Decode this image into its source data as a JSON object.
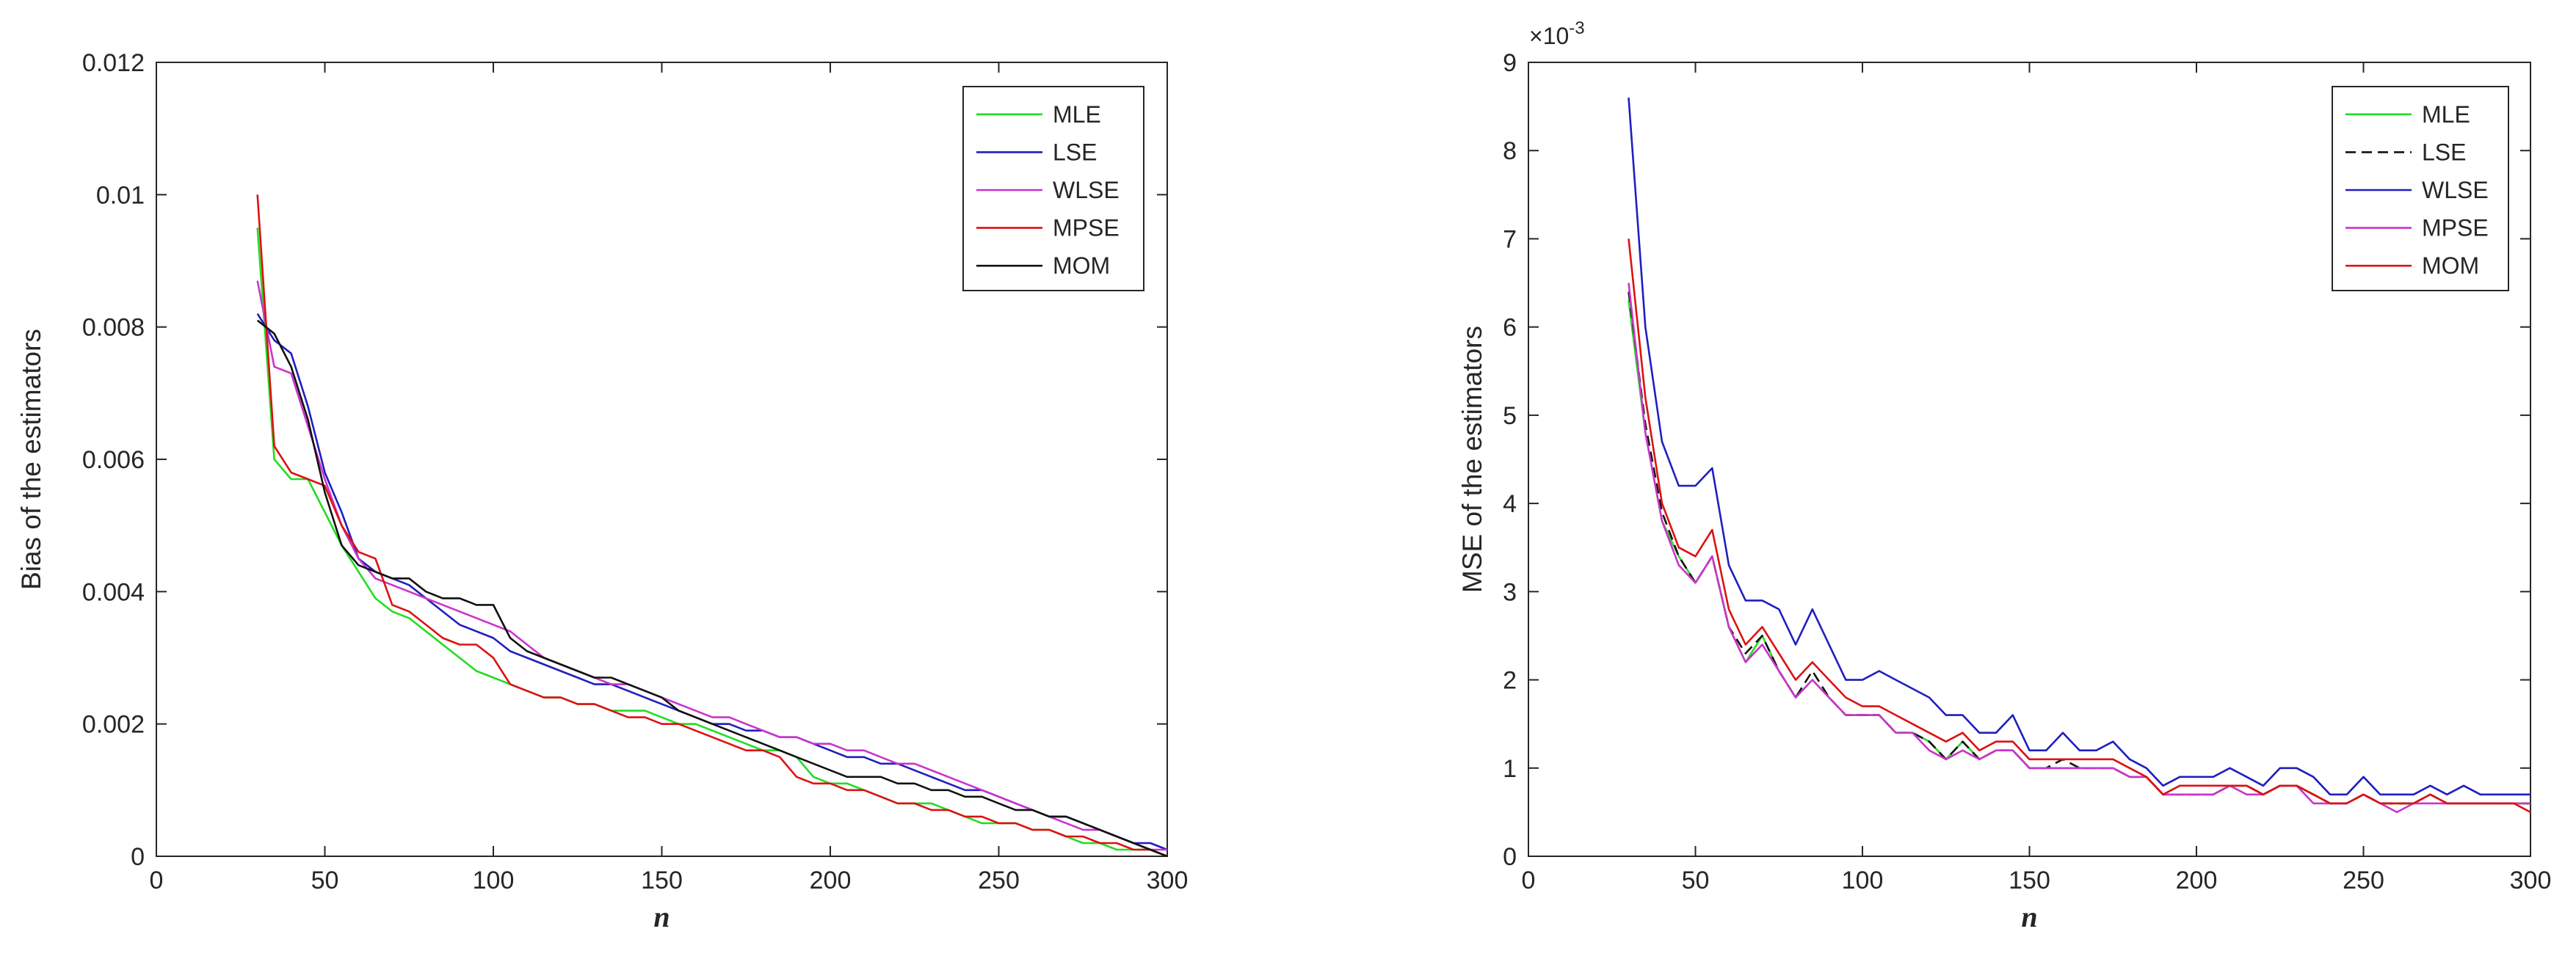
{
  "chart_data": [
    {
      "type": "line",
      "title": "",
      "xlabel": "n",
      "ylabel": "Bias of the estimators",
      "xlim": [
        0,
        300
      ],
      "ylim": [
        0,
        0.012
      ],
      "xticks": [
        0,
        50,
        100,
        150,
        200,
        250,
        300
      ],
      "xtick_labels": [
        "0",
        "50",
        "100",
        "150",
        "200",
        "250",
        "300"
      ],
      "yticks": [
        0,
        0.002,
        0.004,
        0.006,
        0.008,
        0.01,
        0.012
      ],
      "ytick_labels": [
        "0",
        "0.002",
        "0.004",
        "0.006",
        "0.008",
        "0.01",
        "0.012"
      ],
      "exponent_label": "",
      "grid": false,
      "legend_position": "top-right",
      "x": [
        30,
        35,
        40,
        45,
        50,
        55,
        60,
        65,
        70,
        75,
        80,
        85,
        90,
        95,
        100,
        105,
        110,
        115,
        120,
        125,
        130,
        135,
        140,
        145,
        150,
        155,
        160,
        165,
        170,
        175,
        180,
        185,
        190,
        195,
        200,
        205,
        210,
        215,
        220,
        225,
        230,
        235,
        240,
        245,
        250,
        255,
        260,
        265,
        270,
        275,
        280,
        285,
        290,
        295,
        300
      ],
      "series": [
        {
          "name": "MLE",
          "color": "#22dd22",
          "dash": "",
          "values": [
            0.0095,
            0.006,
            0.0057,
            0.0057,
            0.0052,
            0.0047,
            0.0043,
            0.0039,
            0.0037,
            0.0036,
            0.0034,
            0.0032,
            0.003,
            0.0028,
            0.0027,
            0.0026,
            0.0025,
            0.0024,
            0.0024,
            0.0023,
            0.0023,
            0.0022,
            0.0022,
            0.0022,
            0.0021,
            0.002,
            0.002,
            0.0019,
            0.0018,
            0.0017,
            0.0016,
            0.0016,
            0.0015,
            0.0012,
            0.0011,
            0.0011,
            0.001,
            0.0009,
            0.0008,
            0.0008,
            0.0008,
            0.0007,
            0.0006,
            0.0005,
            0.0005,
            0.0005,
            0.0004,
            0.0004,
            0.0003,
            0.0002,
            0.0002,
            0.0001,
            0.0001,
            0.0001,
            0.0
          ]
        },
        {
          "name": "LSE",
          "color": "#1f1fbf",
          "dash": "",
          "values": [
            0.0082,
            0.0078,
            0.0076,
            0.0068,
            0.0058,
            0.0052,
            0.0045,
            0.0043,
            0.0042,
            0.0041,
            0.0039,
            0.0037,
            0.0035,
            0.0034,
            0.0033,
            0.0031,
            0.003,
            0.0029,
            0.0028,
            0.0027,
            0.0026,
            0.0026,
            0.0025,
            0.0024,
            0.0023,
            0.0022,
            0.0021,
            0.002,
            0.002,
            0.0019,
            0.0019,
            0.0018,
            0.0018,
            0.0017,
            0.0016,
            0.0015,
            0.0015,
            0.0014,
            0.0014,
            0.0013,
            0.0012,
            0.0011,
            0.001,
            0.001,
            0.0009,
            0.0008,
            0.0007,
            0.0006,
            0.0006,
            0.0005,
            0.0004,
            0.0003,
            0.0002,
            0.0002,
            0.0001
          ]
        },
        {
          "name": "WLSE",
          "color": "#cc33cc",
          "dash": "",
          "values": [
            0.0087,
            0.0074,
            0.0073,
            0.0065,
            0.0057,
            0.005,
            0.0045,
            0.0042,
            0.0041,
            0.004,
            0.0039,
            0.0038,
            0.0037,
            0.0036,
            0.0035,
            0.0034,
            0.0032,
            0.003,
            0.0029,
            0.0028,
            0.0027,
            0.0026,
            0.0026,
            0.0025,
            0.0024,
            0.0023,
            0.0022,
            0.0021,
            0.0021,
            0.002,
            0.0019,
            0.0018,
            0.0018,
            0.0017,
            0.0017,
            0.0016,
            0.0016,
            0.0015,
            0.0014,
            0.0014,
            0.0013,
            0.0012,
            0.0011,
            0.001,
            0.0009,
            0.0008,
            0.0007,
            0.0006,
            0.0005,
            0.0004,
            0.0004,
            0.0003,
            0.0002,
            0.0001,
            0.0001
          ]
        },
        {
          "name": "MPSE",
          "color": "#dd1111",
          "dash": "",
          "values": [
            0.01,
            0.0062,
            0.0058,
            0.0057,
            0.0056,
            0.005,
            0.0046,
            0.0045,
            0.0038,
            0.0037,
            0.0035,
            0.0033,
            0.0032,
            0.0032,
            0.003,
            0.0026,
            0.0025,
            0.0024,
            0.0024,
            0.0023,
            0.0023,
            0.0022,
            0.0021,
            0.0021,
            0.002,
            0.002,
            0.0019,
            0.0018,
            0.0017,
            0.0016,
            0.0016,
            0.0015,
            0.0012,
            0.0011,
            0.0011,
            0.001,
            0.001,
            0.0009,
            0.0008,
            0.0008,
            0.0007,
            0.0007,
            0.0006,
            0.0006,
            0.0005,
            0.0005,
            0.0004,
            0.0004,
            0.0003,
            0.0003,
            0.0002,
            0.0002,
            0.0001,
            0.0001,
            0.0
          ]
        },
        {
          "name": "MOM",
          "color": "#111111",
          "dash": "",
          "values": [
            0.0081,
            0.0079,
            0.0074,
            0.0066,
            0.0055,
            0.0047,
            0.0044,
            0.0043,
            0.0042,
            0.0042,
            0.004,
            0.0039,
            0.0039,
            0.0038,
            0.0038,
            0.0033,
            0.0031,
            0.003,
            0.0029,
            0.0028,
            0.0027,
            0.0027,
            0.0026,
            0.0025,
            0.0024,
            0.0022,
            0.0021,
            0.002,
            0.0019,
            0.0018,
            0.0017,
            0.0016,
            0.0015,
            0.0014,
            0.0013,
            0.0012,
            0.0012,
            0.0012,
            0.0011,
            0.0011,
            0.001,
            0.001,
            0.0009,
            0.0009,
            0.0008,
            0.0007,
            0.0007,
            0.0006,
            0.0006,
            0.0005,
            0.0004,
            0.0003,
            0.0002,
            0.0001,
            0.0
          ]
        }
      ]
    },
    {
      "type": "line",
      "title": "",
      "xlabel": "n",
      "ylabel": "MSE of the estimators",
      "xlim": [
        0,
        300
      ],
      "ylim": [
        0,
        0.009
      ],
      "xticks": [
        0,
        50,
        100,
        150,
        200,
        250,
        300
      ],
      "xtick_labels": [
        "0",
        "50",
        "100",
        "150",
        "200",
        "250",
        "300"
      ],
      "yticks": [
        0,
        0.001,
        0.002,
        0.003,
        0.004,
        0.005,
        0.006,
        0.007,
        0.008,
        0.009
      ],
      "ytick_labels": [
        "0",
        "1",
        "2",
        "3",
        "4",
        "5",
        "6",
        "7",
        "8",
        "9"
      ],
      "exponent_label": "×10",
      "exponent_power": "-3",
      "grid": false,
      "legend_position": "top-right",
      "x": [
        30,
        35,
        40,
        45,
        50,
        55,
        60,
        65,
        70,
        75,
        80,
        85,
        90,
        95,
        100,
        105,
        110,
        115,
        120,
        125,
        130,
        135,
        140,
        145,
        150,
        155,
        160,
        165,
        170,
        175,
        180,
        185,
        190,
        195,
        200,
        205,
        210,
        215,
        220,
        225,
        230,
        235,
        240,
        245,
        250,
        255,
        260,
        265,
        270,
        275,
        280,
        285,
        290,
        295,
        300
      ],
      "series": [
        {
          "name": "MLE",
          "color": "#22dd22",
          "dash": "",
          "values": [
            0.0063,
            0.0048,
            0.0038,
            0.0034,
            0.0031,
            0.0034,
            0.0026,
            0.0022,
            0.0025,
            0.0021,
            0.0018,
            0.002,
            0.0018,
            0.0016,
            0.0016,
            0.0016,
            0.0014,
            0.0014,
            0.0013,
            0.0011,
            0.0013,
            0.0011,
            0.0012,
            0.0012,
            0.001,
            0.001,
            0.001,
            0.001,
            0.001,
            0.001,
            0.0009,
            0.0009,
            0.0007,
            0.0007,
            0.0007,
            0.0007,
            0.0008,
            0.0008,
            0.0007,
            0.0008,
            0.0008,
            0.0007,
            0.0006,
            0.0006,
            0.0007,
            0.0006,
            0.0006,
            0.0006,
            0.0007,
            0.0006,
            0.0006,
            0.0006,
            0.0006,
            0.0006,
            0.0006
          ]
        },
        {
          "name": "LSE",
          "color": "#111111",
          "dash": "14,8",
          "values": [
            0.0064,
            0.0049,
            0.0039,
            0.0034,
            0.0031,
            0.0034,
            0.0026,
            0.0023,
            0.0025,
            0.0021,
            0.0018,
            0.0021,
            0.0018,
            0.0016,
            0.0016,
            0.0016,
            0.0014,
            0.0014,
            0.0013,
            0.0011,
            0.0013,
            0.0011,
            0.0012,
            0.0012,
            0.001,
            0.001,
            0.0011,
            0.001,
            0.001,
            0.001,
            0.0009,
            0.0009,
            0.0007,
            0.0007,
            0.0007,
            0.0007,
            0.0008,
            0.0008,
            0.0007,
            0.0008,
            0.0008,
            0.0007,
            0.0006,
            0.0006,
            0.0007,
            0.0006,
            0.0006,
            0.0006,
            0.0007,
            0.0006,
            0.0006,
            0.0006,
            0.0006,
            0.0006,
            0.0006
          ]
        },
        {
          "name": "WLSE",
          "color": "#1f1fbf",
          "dash": "",
          "values": [
            0.0086,
            0.006,
            0.0047,
            0.0042,
            0.0042,
            0.0044,
            0.0033,
            0.0029,
            0.0029,
            0.0028,
            0.0024,
            0.0028,
            0.0024,
            0.002,
            0.002,
            0.0021,
            0.002,
            0.0019,
            0.0018,
            0.0016,
            0.0016,
            0.0014,
            0.0014,
            0.0016,
            0.0012,
            0.0012,
            0.0014,
            0.0012,
            0.0012,
            0.0013,
            0.0011,
            0.001,
            0.0008,
            0.0009,
            0.0009,
            0.0009,
            0.001,
            0.0009,
            0.0008,
            0.001,
            0.001,
            0.0009,
            0.0007,
            0.0007,
            0.0009,
            0.0007,
            0.0007,
            0.0007,
            0.0008,
            0.0007,
            0.0008,
            0.0007,
            0.0007,
            0.0007,
            0.0007
          ]
        },
        {
          "name": "MPSE",
          "color": "#cc33cc",
          "dash": "",
          "values": [
            0.0065,
            0.0048,
            0.0038,
            0.0033,
            0.0031,
            0.0034,
            0.0026,
            0.0022,
            0.0024,
            0.0021,
            0.0018,
            0.002,
            0.0018,
            0.0016,
            0.0016,
            0.0016,
            0.0014,
            0.0014,
            0.0012,
            0.0011,
            0.0012,
            0.0011,
            0.0012,
            0.0012,
            0.001,
            0.001,
            0.001,
            0.001,
            0.001,
            0.001,
            0.0009,
            0.0009,
            0.0007,
            0.0007,
            0.0007,
            0.0007,
            0.0008,
            0.0007,
            0.0007,
            0.0008,
            0.0008,
            0.0006,
            0.0006,
            0.0006,
            0.0007,
            0.0006,
            0.0005,
            0.0006,
            0.0006,
            0.0006,
            0.0006,
            0.0006,
            0.0006,
            0.0006,
            0.0006
          ]
        },
        {
          "name": "MOM",
          "color": "#dd1111",
          "dash": "",
          "values": [
            0.007,
            0.0052,
            0.004,
            0.0035,
            0.0034,
            0.0037,
            0.0028,
            0.0024,
            0.0026,
            0.0023,
            0.002,
            0.0022,
            0.002,
            0.0018,
            0.0017,
            0.0017,
            0.0016,
            0.0015,
            0.0014,
            0.0013,
            0.0014,
            0.0012,
            0.0013,
            0.0013,
            0.0011,
            0.0011,
            0.0011,
            0.0011,
            0.0011,
            0.0011,
            0.001,
            0.0009,
            0.0007,
            0.0008,
            0.0008,
            0.0008,
            0.0008,
            0.0008,
            0.0007,
            0.0008,
            0.0008,
            0.0007,
            0.0006,
            0.0006,
            0.0007,
            0.0006,
            0.0006,
            0.0006,
            0.0007,
            0.0006,
            0.0006,
            0.0006,
            0.0006,
            0.0006,
            0.0005
          ]
        }
      ]
    }
  ]
}
